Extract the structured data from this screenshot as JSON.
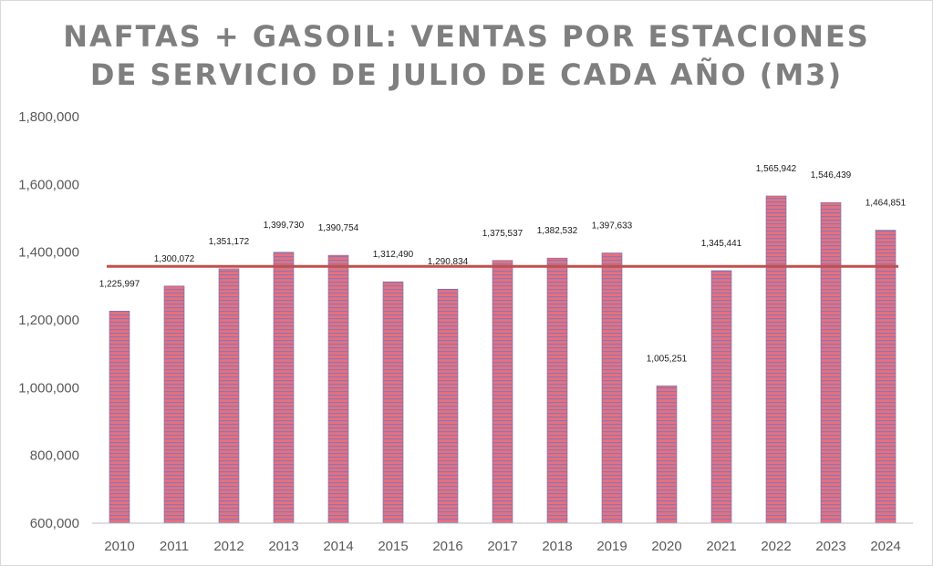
{
  "chart_data": {
    "type": "bar",
    "title_line1": "NAFTAS + GASOIL: VENTAS POR ESTACIONES",
    "title_line2": "DE SERVICIO DE JULIO DE CADA AÑO (M3)",
    "xlabel": "",
    "ylabel": "",
    "categories": [
      "2010",
      "2011",
      "2012",
      "2013",
      "2014",
      "2015",
      "2016",
      "2017",
      "2018",
      "2019",
      "2020",
      "2021",
      "2022",
      "2023",
      "2024"
    ],
    "values": [
      1225997,
      1300072,
      1351172,
      1399730,
      1390754,
      1312490,
      1290834,
      1375537,
      1382532,
      1397633,
      1005251,
      1345441,
      1565942,
      1546439,
      1464851
    ],
    "data_labels": [
      "1,225,997",
      "1,300,072",
      "1,351,172",
      "1,399,730",
      "1,390,754",
      "1,312,490",
      "1,290,834",
      "1,375,537",
      "1,382,532",
      "1,397,633",
      "1,005,251",
      "1,345,441",
      "1,565,942",
      "1,546,439",
      "1,464,851"
    ],
    "ylim": [
      600000,
      1800000
    ],
    "yticks": [
      600000,
      800000,
      1000000,
      1200000,
      1400000,
      1600000,
      1800000
    ],
    "ytick_labels": [
      "600,000",
      "800,000",
      "1,000,000",
      "1,200,000",
      "1,400,000",
      "1,600,000",
      "1,800,000"
    ],
    "reference_line": {
      "value": 1358000
    },
    "grid": false,
    "colors": {
      "bar_fill": "#e8707c",
      "bar_stripe": "#8a76b5",
      "reference_line": "#c0504d",
      "title": "#7f7f7f",
      "axis": "#bfbfbf"
    }
  }
}
